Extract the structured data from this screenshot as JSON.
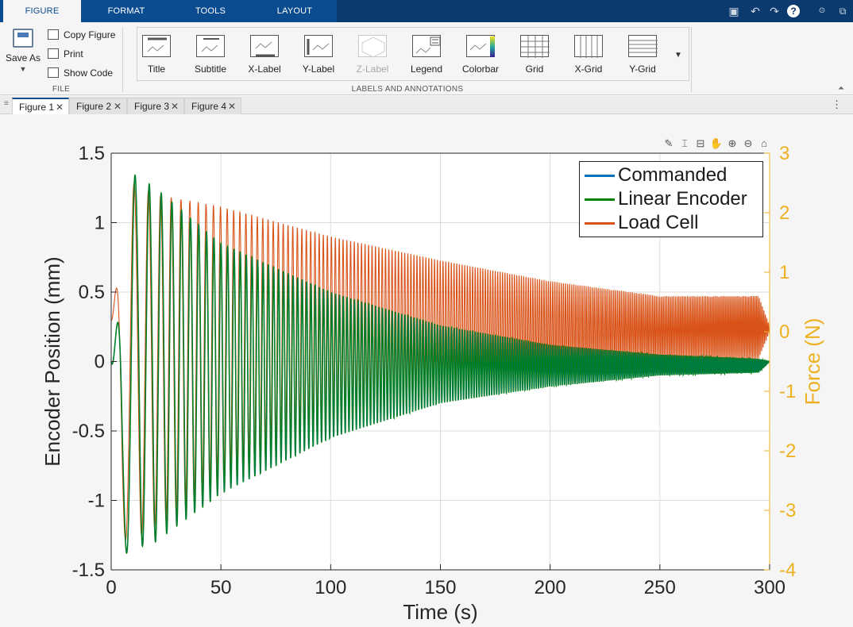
{
  "ribbon_tabs": [
    {
      "label": "FIGURE",
      "active": true
    },
    {
      "label": "FORMAT",
      "active": false
    },
    {
      "label": "TOOLS",
      "active": false
    },
    {
      "label": "LAYOUT",
      "active": false
    }
  ],
  "quick_access": [
    "save-icon",
    "undo-icon",
    "redo-icon",
    "help-icon",
    "pin-icon",
    "dock-icon"
  ],
  "file_group": {
    "label": "FILE",
    "save_as": "Save As",
    "copy_figure": "Copy Figure",
    "print": "Print",
    "show_code": "Show Code"
  },
  "annotations_group": {
    "label": "LABELS AND ANNOTATIONS",
    "buttons": [
      {
        "label": "Title",
        "enabled": true
      },
      {
        "label": "Subtitle",
        "enabled": true
      },
      {
        "label": "X-Label",
        "enabled": true
      },
      {
        "label": "Y-Label",
        "enabled": true
      },
      {
        "label": "Z-Label",
        "enabled": false
      },
      {
        "label": "Legend",
        "enabled": true
      },
      {
        "label": "Colorbar",
        "enabled": true
      },
      {
        "label": "Grid",
        "enabled": true
      },
      {
        "label": "X-Grid",
        "enabled": true
      },
      {
        "label": "Y-Grid",
        "enabled": true
      }
    ]
  },
  "figure_tabs": [
    {
      "label": "Figure 1",
      "active": true
    },
    {
      "label": "Figure 2",
      "active": false
    },
    {
      "label": "Figure 3",
      "active": false
    },
    {
      "label": "Figure 4",
      "active": false
    }
  ],
  "axes_toolbar": [
    "brush-icon",
    "datatip-icon",
    "restore-view-icon",
    "pan-icon",
    "zoom-in-icon",
    "zoom-out-icon",
    "home-icon"
  ],
  "colors": {
    "commanded": "#0072bd",
    "linear_encoder": "#008000",
    "load_cell": "#d95319",
    "right_axis": "#edb120",
    "ribbon_blue": "#0b4b8f"
  },
  "chart_data": {
    "type": "line",
    "xlabel": "Time (s)",
    "ylabel_left": "Encoder Position (mm)",
    "ylabel_right": "Force (N)",
    "xlim": [
      0,
      300
    ],
    "ylim_left": [
      -1.5,
      1.5
    ],
    "ylim_right": [
      -4,
      3
    ],
    "x_ticks": [
      "0",
      "50",
      "100",
      "150",
      "200",
      "250",
      "300"
    ],
    "y_ticks_left": [
      "-1.5",
      "-1",
      "-0.5",
      "0",
      "0.5",
      "1",
      "1.5"
    ],
    "y_ticks_right": [
      "-4",
      "-3",
      "-2",
      "-1",
      "0",
      "1",
      "2",
      "3"
    ],
    "grid": true,
    "legend_position": "top-right",
    "series": [
      {
        "name": "Commanded",
        "axis": "left",
        "description": "chirp sine, amplitude envelope (mm)",
        "t": [
          0,
          5,
          10,
          20,
          50,
          100,
          150,
          200,
          250,
          295,
          300
        ],
        "upper": [
          0,
          0.5,
          1.35,
          1.25,
          0.85,
          0.5,
          0.26,
          0.12,
          0.05,
          0.02,
          0
        ],
        "lower": [
          0,
          -1.4,
          -1.35,
          -1.3,
          -0.95,
          -0.55,
          -0.3,
          -0.18,
          -0.1,
          -0.08,
          0
        ]
      },
      {
        "name": "Linear Encoder",
        "axis": "left",
        "t": [
          0,
          5,
          10,
          20,
          50,
          100,
          150,
          200,
          250,
          295,
          300
        ],
        "upper": [
          0,
          0.5,
          1.35,
          1.25,
          0.85,
          0.5,
          0.26,
          0.12,
          0.05,
          0.02,
          0
        ],
        "lower": [
          0,
          -1.4,
          -1.35,
          -1.3,
          -0.95,
          -0.55,
          -0.3,
          -0.18,
          -0.1,
          -0.08,
          0
        ]
      },
      {
        "name": "Load Cell",
        "axis": "right",
        "t": [
          0,
          5,
          10,
          20,
          50,
          100,
          150,
          200,
          250,
          295,
          300
        ],
        "upper": [
          0.2,
          1.4,
          2.5,
          2.3,
          2.1,
          1.6,
          1.2,
          0.85,
          0.6,
          0.6,
          0.1
        ],
        "lower": [
          0.2,
          -3.5,
          -3.5,
          -3.3,
          -2.5,
          -1.6,
          -1.1,
          -0.75,
          -0.55,
          -0.45,
          0
        ]
      }
    ]
  }
}
